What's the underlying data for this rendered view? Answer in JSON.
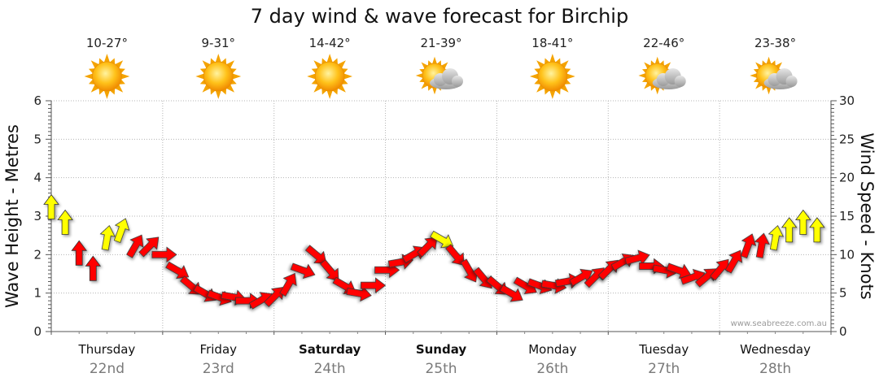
{
  "chart_data": {
    "type": "line",
    "title": "7 day wind & wave forecast for Birchip",
    "ylabel_left": "Wave Height - Metres",
    "ylabel_right": "Wind Speed - Knots",
    "ylim_left": [
      0,
      6
    ],
    "ylim_right": [
      0,
      30
    ],
    "yticks_left": [
      "0",
      "1",
      "2",
      "3",
      "4",
      "5",
      "6"
    ],
    "yticks_right": [
      "0",
      "5",
      "10",
      "15",
      "20",
      "25",
      "30"
    ],
    "grid": true,
    "credit": "www.seabreeze.com.au",
    "days": [
      {
        "name": "Thursday",
        "date": "22nd",
        "bold": false,
        "temp": "10-27°",
        "weather": "sunny-icon"
      },
      {
        "name": "Friday",
        "date": "23rd",
        "bold": false,
        "temp": "9-31°",
        "weather": "sunny-icon"
      },
      {
        "name": "Saturday",
        "date": "24th",
        "bold": true,
        "temp": "14-42°",
        "weather": "sunny-icon"
      },
      {
        "name": "Sunday",
        "date": "25th",
        "bold": true,
        "temp": "21-39°",
        "weather": "partly-cloudy-icon"
      },
      {
        "name": "Monday",
        "date": "26th",
        "bold": false,
        "temp": "18-41°",
        "weather": "sunny-icon"
      },
      {
        "name": "Tuesday",
        "date": "27th",
        "bold": false,
        "temp": "22-46°",
        "weather": "partly-cloudy-icon"
      },
      {
        "name": "Wednesday",
        "date": "28th",
        "bold": false,
        "temp": "23-38°",
        "weather": "partly-cloudy-icon"
      }
    ],
    "series": [
      {
        "name": "Wind Speed",
        "unit": "knots",
        "x_hours": [
          0,
          3,
          6,
          9,
          12,
          15,
          18,
          21,
          24,
          27,
          30,
          33,
          36,
          39,
          42,
          45,
          48,
          51,
          54,
          57,
          60,
          63,
          66,
          69,
          72,
          75,
          78,
          81,
          84,
          87,
          90,
          93,
          96,
          99,
          102,
          105,
          108,
          111,
          114,
          117,
          120,
          123,
          126,
          129,
          132,
          135,
          138,
          141,
          144,
          147,
          150,
          153,
          156,
          159,
          162,
          165
        ],
        "values": [
          16,
          14,
          10,
          8,
          12,
          13,
          11,
          11,
          10,
          8,
          6,
          5,
          4.5,
          4.5,
          4,
          4,
          4.5,
          6,
          8,
          10,
          8,
          6,
          5,
          6,
          8,
          9,
          10,
          11,
          12,
          10,
          8,
          7,
          6,
          5,
          6,
          6,
          6,
          6.5,
          7,
          7,
          8,
          9,
          9.5,
          8.5,
          8,
          8,
          7,
          7,
          8,
          9,
          11,
          11,
          12,
          13,
          14,
          13
        ],
        "direction_deg": [
          0,
          0,
          0,
          0,
          10,
          20,
          30,
          45,
          90,
          120,
          130,
          120,
          110,
          100,
          90,
          60,
          45,
          30,
          110,
          130,
          140,
          120,
          100,
          90,
          90,
          80,
          60,
          45,
          120,
          140,
          150,
          140,
          130,
          120,
          120,
          110,
          100,
          80,
          60,
          45,
          45,
          60,
          75,
          90,
          100,
          110,
          70,
          50,
          40,
          30,
          20,
          10,
          10,
          0,
          0,
          0
        ]
      }
    ]
  }
}
